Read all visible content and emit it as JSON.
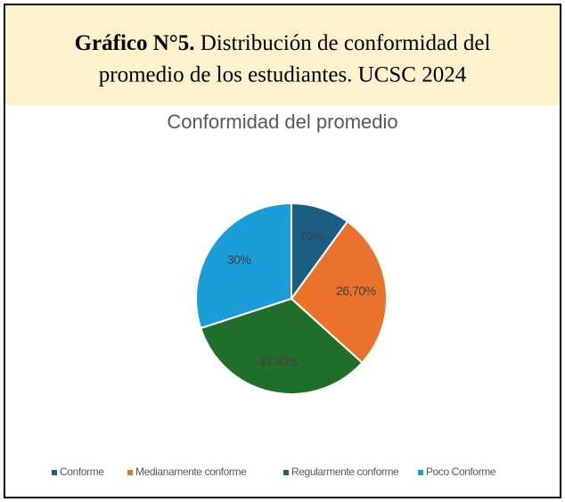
{
  "caption": {
    "label": "Gráfico N°5.",
    "text_line1": "Distribución de conformidad del",
    "text_line2": "promedio de los estudiantes. UCSC 2024"
  },
  "chart_data": {
    "type": "pie",
    "title": "Conformidad del promedio",
    "categories": [
      "Conforme",
      "Medianamente conforme",
      "Regularmente conforme",
      "Poco Conforme"
    ],
    "values": [
      10,
      26.7,
      33.3,
      30
    ],
    "value_labels": [
      "10%",
      "26,70%",
      "33,30%",
      "30%"
    ],
    "colors": [
      "#1b5e84",
      "#e9732b",
      "#1f6f2b",
      "#1a9dd9"
    ],
    "legend": "bottom"
  }
}
